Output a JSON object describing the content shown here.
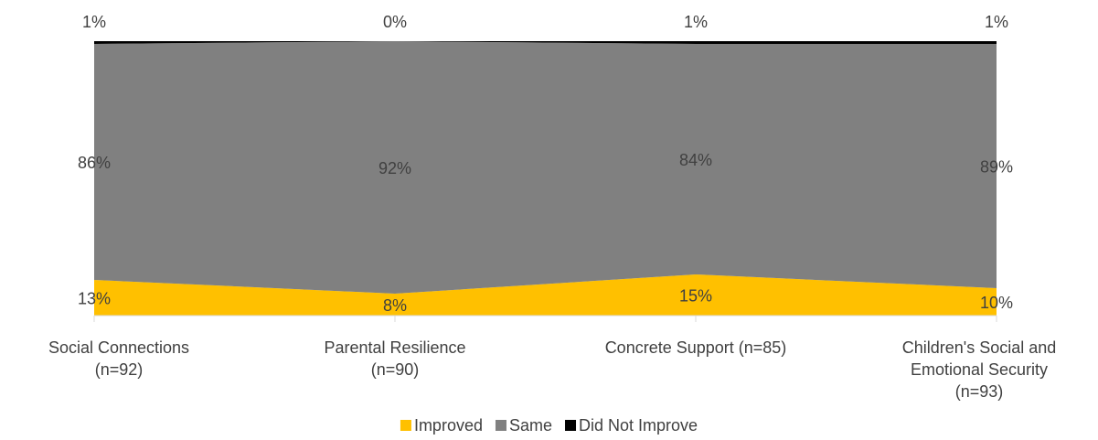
{
  "chart_data": {
    "type": "stacked_area",
    "categories": [
      "Social Connections\n(n=92)",
      "Parental Resilience\n(n=90)",
      "Concrete Support (n=85)",
      "Children's Social and\nEmotional Security\n(n=93)"
    ],
    "ylim": [
      0,
      100
    ],
    "legend": "bottom",
    "series": [
      {
        "name": "Improved",
        "color": "#ffc000",
        "values": [
          13,
          8,
          15,
          10
        ],
        "value_labels": [
          "13%",
          "8%",
          "15%",
          "10%"
        ]
      },
      {
        "name": "Same",
        "color": "#808080",
        "values": [
          86,
          92,
          84,
          89
        ],
        "value_labels": [
          "86%",
          "92%",
          "84%",
          "89%"
        ]
      },
      {
        "name": "Did Not Improve",
        "color": "#000000",
        "values": [
          1,
          0,
          1,
          1
        ],
        "value_labels": [
          "1%",
          "0%",
          "1%",
          "1%"
        ]
      }
    ]
  }
}
